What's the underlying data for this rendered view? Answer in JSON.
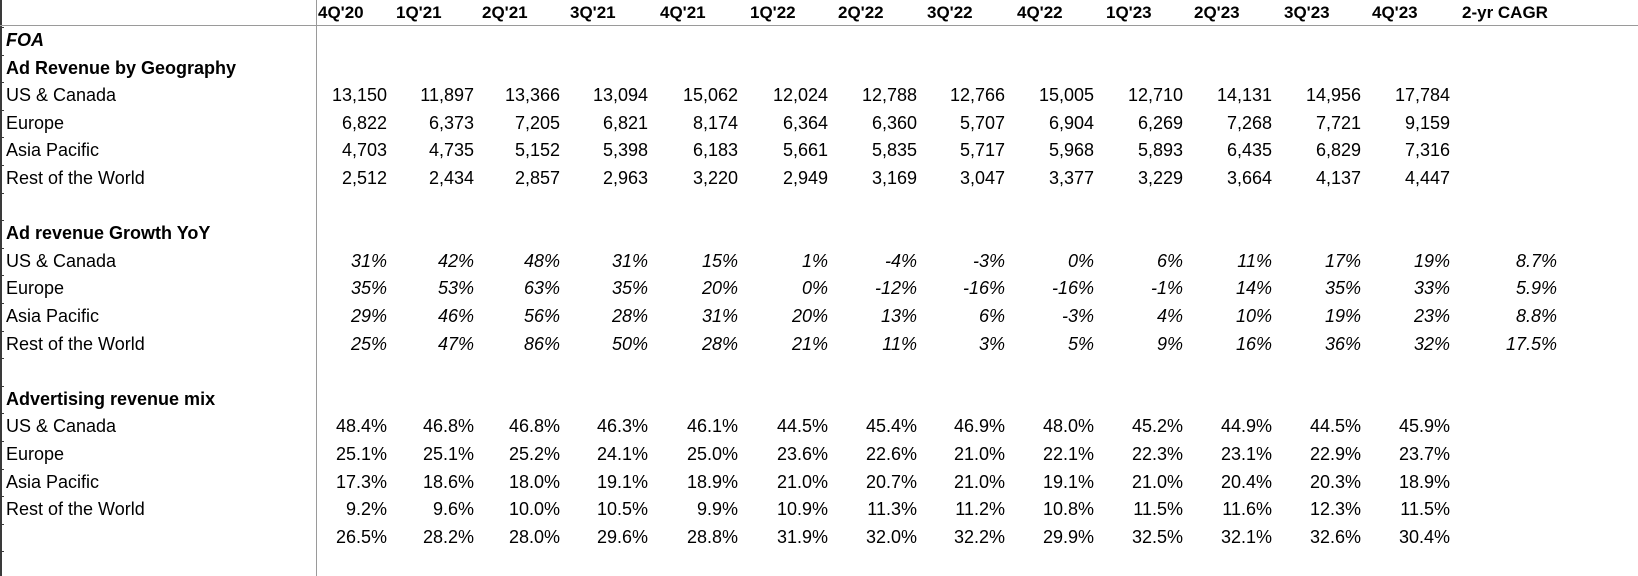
{
  "header": {
    "columns": [
      "4Q'20",
      "1Q'21",
      "2Q'21",
      "3Q'21",
      "4Q'21",
      "1Q'22",
      "2Q'22",
      "3Q'22",
      "4Q'22",
      "1Q'23",
      "2Q'23",
      "3Q'23",
      "4Q'23",
      "2-yr CAGR"
    ]
  },
  "title": "FOA",
  "sections": {
    "revenue": {
      "title": "Ad Revenue by Geography",
      "rows": [
        {
          "label": "US & Canada",
          "values": [
            "13,150",
            "11,897",
            "13,366",
            "13,094",
            "15,062",
            "12,024",
            "12,788",
            "12,766",
            "15,005",
            "12,710",
            "14,131",
            "14,956",
            "17,784",
            ""
          ]
        },
        {
          "label": "Europe",
          "values": [
            "6,822",
            "6,373",
            "7,205",
            "6,821",
            "8,174",
            "6,364",
            "6,360",
            "5,707",
            "6,904",
            "6,269",
            "7,268",
            "7,721",
            "9,159",
            ""
          ]
        },
        {
          "label": "Asia Pacific",
          "values": [
            "4,703",
            "4,735",
            "5,152",
            "5,398",
            "6,183",
            "5,661",
            "5,835",
            "5,717",
            "5,968",
            "5,893",
            "6,435",
            "6,829",
            "7,316",
            ""
          ]
        },
        {
          "label": "Rest of the World",
          "values": [
            "2,512",
            "2,434",
            "2,857",
            "2,963",
            "3,220",
            "2,949",
            "3,169",
            "3,047",
            "3,377",
            "3,229",
            "3,664",
            "4,137",
            "4,447",
            ""
          ]
        }
      ]
    },
    "growth": {
      "title": "Ad revenue Growth YoY",
      "rows": [
        {
          "label": "US & Canada",
          "values": [
            "31%",
            "42%",
            "48%",
            "31%",
            "15%",
            "1%",
            "-4%",
            "-3%",
            "0%",
            "6%",
            "11%",
            "17%",
            "19%",
            "8.7%"
          ]
        },
        {
          "label": "Europe",
          "values": [
            "35%",
            "53%",
            "63%",
            "35%",
            "20%",
            "0%",
            "-12%",
            "-16%",
            "-16%",
            "-1%",
            "14%",
            "35%",
            "33%",
            "5.9%"
          ]
        },
        {
          "label": "Asia Pacific",
          "values": [
            "29%",
            "46%",
            "56%",
            "28%",
            "31%",
            "20%",
            "13%",
            "6%",
            "-3%",
            "4%",
            "10%",
            "19%",
            "23%",
            "8.8%"
          ]
        },
        {
          "label": "Rest of the World",
          "values": [
            "25%",
            "47%",
            "86%",
            "50%",
            "28%",
            "21%",
            "11%",
            "3%",
            "5%",
            "9%",
            "16%",
            "36%",
            "32%",
            "17.5%"
          ]
        }
      ]
    },
    "mix": {
      "title": "Advertising revenue mix",
      "rows": [
        {
          "label": "US & Canada",
          "values": [
            "48.4%",
            "46.8%",
            "46.8%",
            "46.3%",
            "46.1%",
            "44.5%",
            "45.4%",
            "46.9%",
            "48.0%",
            "45.2%",
            "44.9%",
            "44.5%",
            "45.9%",
            ""
          ]
        },
        {
          "label": "Europe",
          "values": [
            "25.1%",
            "25.1%",
            "25.2%",
            "24.1%",
            "25.0%",
            "23.6%",
            "22.6%",
            "21.0%",
            "22.1%",
            "22.3%",
            "23.1%",
            "22.9%",
            "23.7%",
            ""
          ]
        },
        {
          "label": "Asia Pacific",
          "values": [
            "17.3%",
            "18.6%",
            "18.0%",
            "19.1%",
            "18.9%",
            "21.0%",
            "20.7%",
            "21.0%",
            "19.1%",
            "21.0%",
            "20.4%",
            "20.3%",
            "18.9%",
            ""
          ]
        },
        {
          "label": "Rest of the World",
          "values": [
            "9.2%",
            "9.6%",
            "10.0%",
            "10.5%",
            "9.9%",
            "10.9%",
            "11.3%",
            "11.2%",
            "10.8%",
            "11.5%",
            "11.6%",
            "12.3%",
            "11.5%",
            ""
          ]
        },
        {
          "label": "",
          "values": [
            "26.5%",
            "28.2%",
            "28.0%",
            "29.6%",
            "28.8%",
            "31.9%",
            "32.0%",
            "32.2%",
            "29.9%",
            "32.5%",
            "32.1%",
            "32.6%",
            "30.4%",
            ""
          ]
        }
      ]
    }
  }
}
